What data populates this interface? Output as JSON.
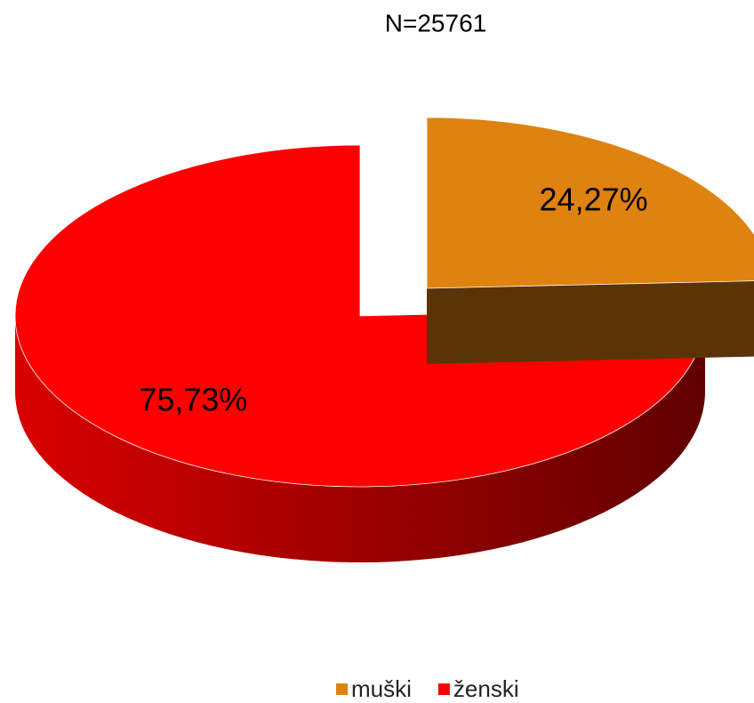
{
  "chart_data": {
    "type": "pie",
    "title": "N=25761",
    "categories": [
      "muški",
      "ženski"
    ],
    "values": [
      24.27,
      75.73
    ],
    "value_labels": [
      "24,27%",
      "75,73%"
    ],
    "colors": [
      "#E0820F",
      "#FF0000"
    ],
    "legend": "bottom"
  }
}
